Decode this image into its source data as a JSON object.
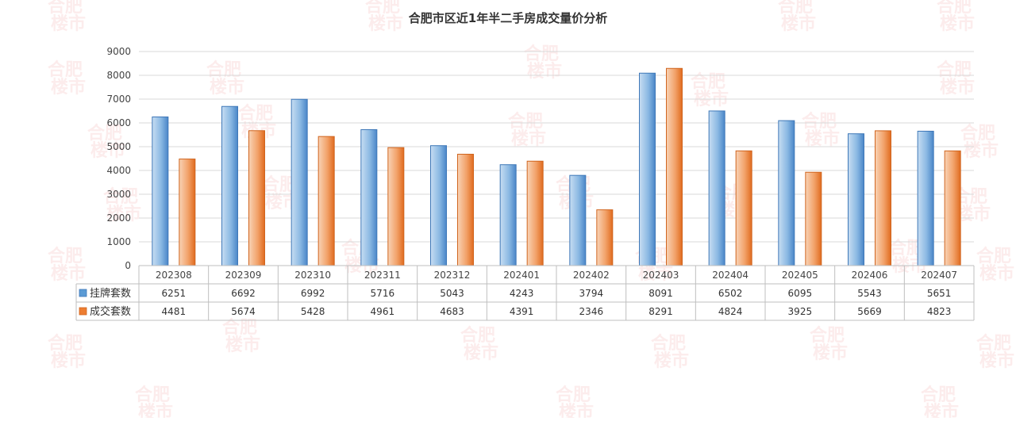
{
  "chart_data": {
    "type": "bar",
    "title": "合肥市区近1年半二手房成交量价分析",
    "categories": [
      "202308",
      "202309",
      "202310",
      "202311",
      "202312",
      "202401",
      "202402",
      "202403",
      "202404",
      "202405",
      "202406",
      "202407"
    ],
    "series": [
      {
        "name": "挂牌套数",
        "values": [
          6251,
          6692,
          6992,
          5716,
          5043,
          4243,
          3794,
          8091,
          6502,
          6095,
          5543,
          5651
        ],
        "color": "#5b9bd5"
      },
      {
        "name": "成交套数",
        "values": [
          4481,
          5674,
          5428,
          4961,
          4683,
          4391,
          2346,
          8291,
          4824,
          3925,
          5669,
          4823
        ],
        "color": "#ed7d31"
      }
    ],
    "ylim": [
      0,
      9000
    ],
    "yticks": [
      0,
      1000,
      2000,
      3000,
      4000,
      5000,
      6000,
      7000,
      8000,
      9000
    ],
    "grid": true,
    "legend": "data-table"
  },
  "watermark": {
    "line1": "合肥",
    "line2": "楼市"
  }
}
